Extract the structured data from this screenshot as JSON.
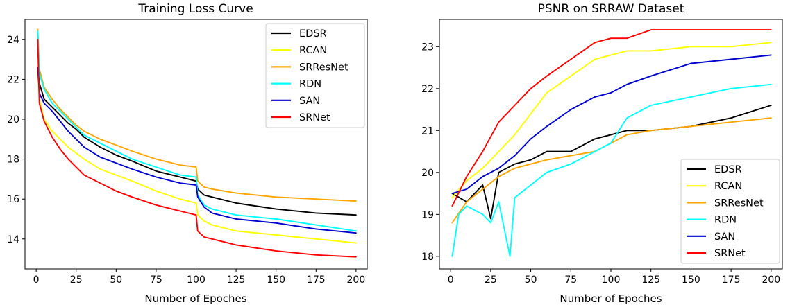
{
  "chart_data": [
    {
      "type": "line",
      "title": "Training Loss Curve",
      "xlabel": "Number of Epoches",
      "ylabel": "",
      "xlim": [
        -7,
        207
      ],
      "ylim": [
        12.5,
        25
      ],
      "xticks": [
        0,
        25,
        50,
        75,
        100,
        125,
        150,
        175,
        200
      ],
      "yticks": [
        14,
        16,
        18,
        20,
        22,
        24
      ],
      "legend_position": "top-right",
      "grid": false,
      "series": [
        {
          "name": "EDSR",
          "color": "#000000",
          "points": [
            [
              1,
              22.6
            ],
            [
              2,
              21.8
            ],
            [
              5,
              21.0
            ],
            [
              10,
              20.6
            ],
            [
              15,
              20.2
            ],
            [
              20,
              19.8
            ],
            [
              25,
              19.5
            ],
            [
              30,
              19.1
            ],
            [
              40,
              18.6
            ],
            [
              50,
              18.2
            ],
            [
              60,
              17.9
            ],
            [
              75,
              17.4
            ],
            [
              90,
              17.1
            ],
            [
              100,
              16.9
            ],
            [
              101,
              16.5
            ],
            [
              105,
              16.2
            ],
            [
              110,
              16.1
            ],
            [
              125,
              15.8
            ],
            [
              150,
              15.5
            ],
            [
              175,
              15.3
            ],
            [
              200,
              15.2
            ]
          ]
        },
        {
          "name": "RCAN",
          "color": "#ffff00",
          "points": [
            [
              1,
              22.5
            ],
            [
              2,
              21.0
            ],
            [
              5,
              20.0
            ],
            [
              10,
              19.4
            ],
            [
              15,
              19.0
            ],
            [
              20,
              18.6
            ],
            [
              25,
              18.3
            ],
            [
              30,
              18.0
            ],
            [
              40,
              17.5
            ],
            [
              50,
              17.2
            ],
            [
              60,
              16.9
            ],
            [
              75,
              16.4
            ],
            [
              90,
              16.0
            ],
            [
              100,
              15.8
            ],
            [
              101,
              15.2
            ],
            [
              105,
              14.9
            ],
            [
              110,
              14.7
            ],
            [
              125,
              14.4
            ],
            [
              150,
              14.2
            ],
            [
              175,
              14.0
            ],
            [
              200,
              13.8
            ]
          ]
        },
        {
          "name": "SRResNet",
          "color": "#ffa500",
          "points": [
            [
              1,
              24.5
            ],
            [
              2,
              22.5
            ],
            [
              5,
              21.6
            ],
            [
              10,
              21.0
            ],
            [
              15,
              20.5
            ],
            [
              20,
              20.1
            ],
            [
              25,
              19.7
            ],
            [
              30,
              19.4
            ],
            [
              40,
              19.0
            ],
            [
              50,
              18.7
            ],
            [
              60,
              18.4
            ],
            [
              75,
              18.0
            ],
            [
              90,
              17.7
            ],
            [
              100,
              17.6
            ],
            [
              101,
              16.9
            ],
            [
              105,
              16.6
            ],
            [
              110,
              16.5
            ],
            [
              125,
              16.3
            ],
            [
              150,
              16.1
            ],
            [
              175,
              16.0
            ],
            [
              200,
              15.9
            ]
          ]
        },
        {
          "name": "RDN",
          "color": "#00ffff",
          "points": [
            [
              1,
              24.4
            ],
            [
              2,
              22.3
            ],
            [
              5,
              21.5
            ],
            [
              10,
              20.8
            ],
            [
              15,
              20.4
            ],
            [
              20,
              20.0
            ],
            [
              25,
              19.6
            ],
            [
              30,
              19.2
            ],
            [
              40,
              18.8
            ],
            [
              50,
              18.4
            ],
            [
              60,
              18.0
            ],
            [
              75,
              17.6
            ],
            [
              90,
              17.2
            ],
            [
              100,
              17.1
            ],
            [
              101,
              16.2
            ],
            [
              105,
              15.7
            ],
            [
              110,
              15.5
            ],
            [
              125,
              15.2
            ],
            [
              150,
              15.0
            ],
            [
              175,
              14.7
            ],
            [
              200,
              14.4
            ]
          ]
        },
        {
          "name": "SAN",
          "color": "#0000cd",
          "points": [
            [
              1,
              22.6
            ],
            [
              2,
              21.3
            ],
            [
              5,
              20.8
            ],
            [
              10,
              20.4
            ],
            [
              15,
              19.9
            ],
            [
              20,
              19.4
            ],
            [
              25,
              19.0
            ],
            [
              30,
              18.6
            ],
            [
              40,
              18.1
            ],
            [
              50,
              17.8
            ],
            [
              60,
              17.5
            ],
            [
              75,
              17.1
            ],
            [
              90,
              16.8
            ],
            [
              100,
              16.7
            ],
            [
              101,
              16.1
            ],
            [
              105,
              15.6
            ],
            [
              110,
              15.3
            ],
            [
              125,
              15.0
            ],
            [
              150,
              14.8
            ],
            [
              175,
              14.5
            ],
            [
              200,
              14.3
            ]
          ]
        },
        {
          "name": "SRNet",
          "color": "#ff0000",
          "points": [
            [
              1,
              24.0
            ],
            [
              2,
              20.8
            ],
            [
              5,
              19.9
            ],
            [
              10,
              19.1
            ],
            [
              15,
              18.5
            ],
            [
              20,
              18.0
            ],
            [
              25,
              17.6
            ],
            [
              30,
              17.2
            ],
            [
              40,
              16.8
            ],
            [
              50,
              16.4
            ],
            [
              60,
              16.1
            ],
            [
              75,
              15.7
            ],
            [
              90,
              15.4
            ],
            [
              100,
              15.2
            ],
            [
              101,
              14.4
            ],
            [
              105,
              14.1
            ],
            [
              110,
              14.0
            ],
            [
              125,
              13.7
            ],
            [
              150,
              13.4
            ],
            [
              175,
              13.2
            ],
            [
              200,
              13.1
            ]
          ]
        }
      ]
    },
    {
      "type": "line",
      "title": "PSNR on SRRAW Dataset",
      "xlabel": "Number of Epoches",
      "ylabel": "",
      "xlim": [
        -7,
        207
      ],
      "ylim": [
        17.7,
        23.65
      ],
      "xticks": [
        0,
        25,
        50,
        75,
        100,
        125,
        150,
        175,
        200
      ],
      "yticks": [
        18,
        19,
        20,
        21,
        22,
        23
      ],
      "legend_position": "lower-right",
      "grid": false,
      "series": [
        {
          "name": "EDSR",
          "color": "#000000",
          "points": [
            [
              1,
              19.5
            ],
            [
              10,
              19.3
            ],
            [
              20,
              19.7
            ],
            [
              25,
              18.9
            ],
            [
              30,
              20.0
            ],
            [
              40,
              20.2
            ],
            [
              50,
              20.3
            ],
            [
              60,
              20.5
            ],
            [
              75,
              20.5
            ],
            [
              90,
              20.8
            ],
            [
              100,
              20.9
            ],
            [
              110,
              21.0
            ],
            [
              125,
              21.0
            ],
            [
              150,
              21.1
            ],
            [
              175,
              21.3
            ],
            [
              200,
              21.6
            ]
          ]
        },
        {
          "name": "RCAN",
          "color": "#ffff00",
          "points": [
            [
              1,
              19.4
            ],
            [
              10,
              19.8
            ],
            [
              20,
              20.1
            ],
            [
              30,
              20.5
            ],
            [
              40,
              20.9
            ],
            [
              50,
              21.4
            ],
            [
              60,
              21.9
            ],
            [
              75,
              22.3
            ],
            [
              90,
              22.7
            ],
            [
              100,
              22.8
            ],
            [
              110,
              22.9
            ],
            [
              125,
              22.9
            ],
            [
              150,
              23.0
            ],
            [
              175,
              23.0
            ],
            [
              200,
              23.1
            ]
          ]
        },
        {
          "name": "SRResNet",
          "color": "#ffa500",
          "points": [
            [
              1,
              18.8
            ],
            [
              10,
              19.3
            ],
            [
              20,
              19.6
            ],
            [
              30,
              19.9
            ],
            [
              40,
              20.1
            ],
            [
              50,
              20.2
            ],
            [
              60,
              20.3
            ],
            [
              75,
              20.4
            ],
            [
              90,
              20.5
            ],
            [
              100,
              20.7
            ],
            [
              110,
              20.9
            ],
            [
              125,
              21.0
            ],
            [
              150,
              21.1
            ],
            [
              175,
              21.2
            ],
            [
              200,
              21.3
            ]
          ]
        },
        {
          "name": "RDN",
          "color": "#00ffff",
          "points": [
            [
              1,
              18.0
            ],
            [
              5,
              19.0
            ],
            [
              10,
              19.2
            ],
            [
              20,
              19.0
            ],
            [
              25,
              18.8
            ],
            [
              30,
              19.3
            ],
            [
              37,
              18.0
            ],
            [
              40,
              19.4
            ],
            [
              50,
              19.7
            ],
            [
              60,
              20.0
            ],
            [
              75,
              20.2
            ],
            [
              90,
              20.5
            ],
            [
              100,
              20.7
            ],
            [
              110,
              21.3
            ],
            [
              125,
              21.6
            ],
            [
              150,
              21.8
            ],
            [
              175,
              22.0
            ],
            [
              200,
              22.1
            ]
          ]
        },
        {
          "name": "SAN",
          "color": "#0000cd",
          "points": [
            [
              1,
              19.5
            ],
            [
              10,
              19.6
            ],
            [
              20,
              19.9
            ],
            [
              30,
              20.1
            ],
            [
              40,
              20.4
            ],
            [
              50,
              20.8
            ],
            [
              60,
              21.1
            ],
            [
              75,
              21.5
            ],
            [
              90,
              21.8
            ],
            [
              100,
              21.9
            ],
            [
              110,
              22.1
            ],
            [
              125,
              22.3
            ],
            [
              150,
              22.6
            ],
            [
              175,
              22.7
            ],
            [
              200,
              22.8
            ]
          ]
        },
        {
          "name": "SRNet",
          "color": "#ff0000",
          "points": [
            [
              1,
              19.2
            ],
            [
              10,
              19.9
            ],
            [
              20,
              20.5
            ],
            [
              30,
              21.2
            ],
            [
              40,
              21.6
            ],
            [
              50,
              22.0
            ],
            [
              60,
              22.3
            ],
            [
              75,
              22.7
            ],
            [
              90,
              23.1
            ],
            [
              100,
              23.2
            ],
            [
              110,
              23.2
            ],
            [
              125,
              23.4
            ],
            [
              150,
              23.4
            ],
            [
              175,
              23.4
            ],
            [
              200,
              23.4
            ]
          ]
        }
      ]
    }
  ]
}
